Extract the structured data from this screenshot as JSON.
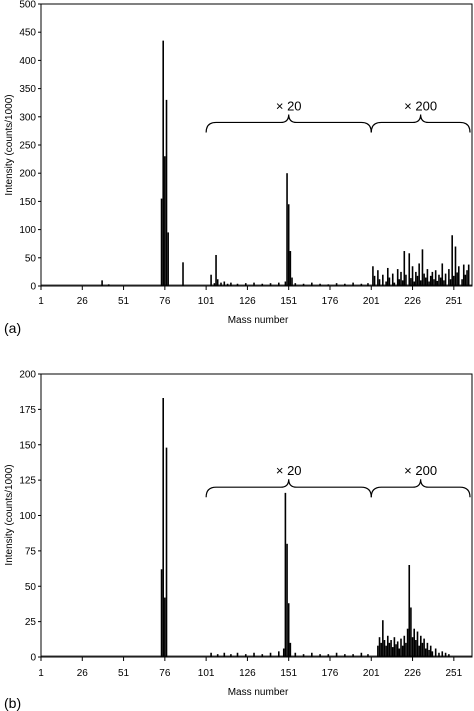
{
  "chart_data": [
    {
      "type": "bar",
      "panel_label": "(a)",
      "xlabel": "Mass number",
      "ylabel": "Intensity (counts/1000)",
      "xlim": [
        1,
        262
      ],
      "ylim": [
        0,
        500
      ],
      "yticks": [
        0,
        50,
        100,
        150,
        200,
        250,
        300,
        350,
        400,
        450,
        500
      ],
      "xticks": [
        1,
        26,
        51,
        76,
        101,
        126,
        151,
        176,
        201,
        226,
        251
      ],
      "grid": false,
      "annotations": [
        {
          "text": "× 20",
          "x_from": 101,
          "x_to": 201,
          "y": 290
        },
        {
          "text": "× 200",
          "x_from": 201,
          "x_to": 262,
          "y": 290
        }
      ],
      "x": [
        38,
        42,
        74,
        75,
        76,
        77,
        78,
        87,
        104,
        106,
        107,
        108,
        110,
        112,
        114,
        116,
        120,
        125,
        130,
        135,
        140,
        145,
        149,
        150,
        151,
        152,
        153,
        155,
        160,
        165,
        170,
        175,
        180,
        185,
        190,
        195,
        199,
        202,
        203,
        205,
        206,
        208,
        210,
        211,
        212,
        214,
        215,
        217,
        218,
        219,
        220,
        221,
        222,
        224,
        225,
        226,
        227,
        228,
        229,
        230,
        231,
        232,
        233,
        234,
        235,
        236,
        237,
        238,
        239,
        240,
        241,
        242,
        243,
        244,
        245,
        246,
        248,
        249,
        250,
        251,
        252,
        253,
        254,
        256,
        257,
        258,
        259,
        260
      ],
      "values": [
        10,
        3,
        155,
        435,
        230,
        330,
        95,
        42,
        20,
        5,
        55,
        12,
        6,
        8,
        4,
        6,
        4,
        5,
        6,
        4,
        5,
        6,
        8,
        200,
        145,
        62,
        15,
        5,
        4,
        6,
        4,
        3,
        5,
        4,
        6,
        4,
        5,
        35,
        18,
        28,
        12,
        20,
        8,
        32,
        15,
        22,
        6,
        30,
        12,
        25,
        10,
        62,
        20,
        58,
        14,
        35,
        8,
        25,
        18,
        40,
        10,
        65,
        22,
        15,
        30,
        8,
        18,
        25,
        12,
        28,
        9,
        20,
        15,
        40,
        10,
        22,
        30,
        12,
        90,
        18,
        70,
        24,
        35,
        12,
        38,
        20,
        28,
        38
      ]
    },
    {
      "type": "bar",
      "panel_label": "(b)",
      "xlabel": "Mass number",
      "ylabel": "Intensity (counts/1000)",
      "xlim": [
        1,
        262
      ],
      "ylim": [
        0,
        200
      ],
      "yticks": [
        0,
        25,
        50,
        75,
        100,
        125,
        150,
        175,
        200
      ],
      "xticks": [
        1,
        26,
        51,
        76,
        101,
        126,
        151,
        176,
        201,
        226,
        251
      ],
      "grid": false,
      "annotations": [
        {
          "text": "× 20",
          "x_from": 101,
          "x_to": 201,
          "y": 120
        },
        {
          "text": "× 200",
          "x_from": 201,
          "x_to": 262,
          "y": 120
        }
      ],
      "x": [
        74,
        75,
        76,
        77,
        104,
        108,
        112,
        116,
        120,
        125,
        130,
        135,
        140,
        145,
        148,
        149,
        150,
        151,
        152,
        155,
        160,
        165,
        170,
        175,
        180,
        185,
        190,
        195,
        199,
        205,
        206,
        207,
        208,
        209,
        210,
        211,
        212,
        213,
        214,
        215,
        216,
        217,
        218,
        219,
        220,
        221,
        222,
        223,
        224,
        225,
        226,
        227,
        228,
        229,
        230,
        231,
        232,
        233,
        234,
        235,
        236,
        237,
        238,
        240,
        242,
        244,
        246,
        248
      ],
      "values": [
        62,
        183,
        42,
        148,
        3,
        2,
        3,
        2,
        3,
        2,
        3,
        2,
        3,
        4,
        6,
        116,
        80,
        38,
        10,
        3,
        2,
        3,
        2,
        2,
        3,
        2,
        2,
        3,
        2,
        8,
        14,
        10,
        26,
        12,
        8,
        15,
        10,
        12,
        7,
        14,
        9,
        11,
        6,
        13,
        8,
        15,
        10,
        20,
        65,
        35,
        14,
        20,
        12,
        18,
        8,
        15,
        10,
        13,
        6,
        10,
        5,
        8,
        4,
        6,
        3,
        4,
        3,
        2
      ]
    }
  ]
}
